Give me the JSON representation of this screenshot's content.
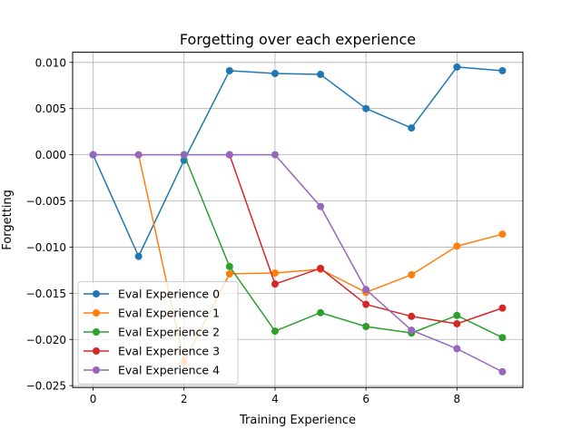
{
  "chart_data": {
    "type": "line",
    "title": "Forgetting over each experience",
    "xlabel": "Training Experience",
    "ylabel": "Forgetting",
    "x": [
      0,
      1,
      2,
      3,
      4,
      5,
      6,
      7,
      8,
      9
    ],
    "xlim": [
      -0.45,
      9.45
    ],
    "ylim": [
      -0.0252,
      0.0111
    ],
    "xticks": [
      0,
      2,
      4,
      6,
      8
    ],
    "xtick_labels": [
      "0",
      "2",
      "4",
      "6",
      "8"
    ],
    "yticks": [
      0.01,
      0.005,
      0.0,
      -0.005,
      -0.01,
      -0.015,
      -0.02,
      -0.025
    ],
    "ytick_labels": [
      "0.010",
      "0.005",
      "0.000",
      "−0.005",
      "−0.010",
      "−0.015",
      "−0.020",
      "−0.025"
    ],
    "grid": true,
    "legend_position": "lower-left",
    "series": [
      {
        "name": "Eval Experience 0",
        "color": "#1f77b4",
        "x": [
          0,
          1,
          2,
          3,
          4,
          5,
          6,
          7,
          8,
          9
        ],
        "values": [
          0.0,
          -0.011,
          -0.0006,
          0.0091,
          0.0088,
          0.0087,
          0.005,
          0.0029,
          0.0095,
          0.0091
        ]
      },
      {
        "name": "Eval Experience 1",
        "color": "#ff7f0e",
        "x": [
          1,
          2,
          3,
          4,
          5,
          6,
          7,
          8,
          9
        ],
        "values": [
          0.0,
          -0.0224,
          -0.0129,
          -0.0128,
          -0.0124,
          -0.0149,
          -0.013,
          -0.0099,
          -0.0086
        ]
      },
      {
        "name": "Eval Experience 2",
        "color": "#2ca02c",
        "x": [
          2,
          3,
          4,
          5,
          6,
          7,
          8,
          9
        ],
        "values": [
          0.0,
          -0.0121,
          -0.0191,
          -0.0171,
          -0.0186,
          -0.0193,
          -0.0174,
          -0.0198
        ]
      },
      {
        "name": "Eval Experience 3",
        "color": "#d62728",
        "x": [
          3,
          4,
          5,
          6,
          7,
          8,
          9
        ],
        "values": [
          0.0,
          -0.014,
          -0.0123,
          -0.0162,
          -0.0175,
          -0.0183,
          -0.0166
        ]
      },
      {
        "name": "Eval Experience 4",
        "color": "#9467bd",
        "x": [
          0,
          1,
          2,
          3,
          4,
          5,
          6,
          7,
          8,
          9
        ],
        "values": [
          0.0,
          0.0,
          0.0,
          0.0,
          0.0,
          -0.0056,
          -0.0146,
          -0.019,
          -0.021,
          -0.0235
        ]
      }
    ]
  }
}
